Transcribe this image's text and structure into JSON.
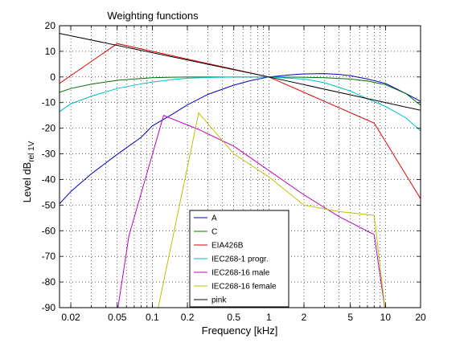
{
  "chart_data": {
    "type": "line",
    "title": "Weighting functions",
    "xlabel": "Frequency [kHz]",
    "ylabel_main": "Level dB",
    "ylabel_sub": "rel 1V",
    "xscale": "log",
    "xlim": [
      0.016,
      20
    ],
    "ylim": [
      -90,
      20
    ],
    "grid": "x-major-minor dotted, y dotted",
    "legend_position": "lower-center",
    "xticks": [
      {
        "v": 0.02,
        "label": "0.02"
      },
      {
        "v": 0.05,
        "label": "0.05"
      },
      {
        "v": 0.1,
        "label": "0.1"
      },
      {
        "v": 0.2,
        "label": "0.2"
      },
      {
        "v": 0.5,
        "label": "0.5"
      },
      {
        "v": 1,
        "label": "1"
      },
      {
        "v": 2,
        "label": "2"
      },
      {
        "v": 5,
        "label": "5"
      },
      {
        "v": 10,
        "label": "10"
      },
      {
        "v": 20,
        "label": "20"
      }
    ],
    "yticks": [
      20,
      10,
      0,
      -10,
      -20,
      -30,
      -40,
      -50,
      -60,
      -70,
      -80,
      -90
    ],
    "series": [
      {
        "name": "A",
        "color": "#0000c0",
        "x": [
          0.016,
          0.02,
          0.03,
          0.05,
          0.08,
          0.1,
          0.15,
          0.2,
          0.3,
          0.5,
          0.7,
          1,
          1.5,
          2,
          3,
          4,
          5,
          7,
          10,
          15,
          20
        ],
        "y": [
          -49.5,
          -44.7,
          -37.8,
          -30.2,
          -23.6,
          -19.1,
          -14.4,
          -10.9,
          -6.8,
          -3.2,
          -1.4,
          0,
          0.8,
          1.2,
          1.3,
          1.0,
          0.5,
          -0.8,
          -2.5,
          -6.5,
          -9.5
        ]
      },
      {
        "name": "C",
        "color": "#007000",
        "x": [
          0.016,
          0.02,
          0.03,
          0.05,
          0.08,
          0.1,
          0.15,
          0.2,
          0.5,
          1,
          2,
          3,
          5,
          7,
          10,
          15,
          20
        ],
        "y": [
          -6,
          -4.5,
          -2.8,
          -1.3,
          -0.6,
          -0.3,
          -0.1,
          0,
          0,
          0,
          -0.1,
          -0.3,
          -0.8,
          -1.6,
          -3.0,
          -6.5,
          -11
        ]
      },
      {
        "name": "EIA426B",
        "color": "#e00000",
        "x": [
          0.016,
          0.05,
          1,
          8,
          20
        ],
        "y": [
          -2.5,
          13,
          0,
          -18,
          -47.5
        ]
      },
      {
        "name": "IEC268-1 progr.",
        "color": "#00c0c0",
        "x": [
          0.016,
          0.02,
          0.03,
          0.05,
          0.08,
          0.1,
          0.15,
          0.2,
          0.3,
          0.5,
          1,
          2,
          3,
          5,
          7,
          10,
          15,
          20
        ],
        "y": [
          -13.5,
          -10.5,
          -7.5,
          -4.5,
          -2.7,
          -2,
          -1,
          -0.5,
          -0.2,
          0,
          0,
          -0.8,
          -2.2,
          -5.5,
          -8.5,
          -11.5,
          -16,
          -21
        ]
      },
      {
        "name": "IEC268-16 male",
        "color": "#c000c0",
        "x": [
          0.05,
          0.063,
          0.125,
          0.25,
          0.5,
          1,
          2,
          4,
          8,
          10
        ],
        "y": [
          -92,
          -62,
          -15,
          -20.5,
          -27,
          -36.5,
          -46,
          -54.5,
          -61.5,
          -92
        ]
      },
      {
        "name": "IEC268-16 female",
        "color": "#c0c000",
        "x": [
          0.11,
          0.25,
          0.5,
          1,
          2,
          4,
          8,
          10
        ],
        "y": [
          -92,
          -14,
          -30,
          -39,
          -50,
          -52.5,
          -54,
          -92
        ]
      },
      {
        "name": "pink",
        "color": "#000000",
        "x": [
          0.016,
          1,
          20
        ],
        "y": [
          17,
          0,
          -13
        ]
      }
    ]
  }
}
